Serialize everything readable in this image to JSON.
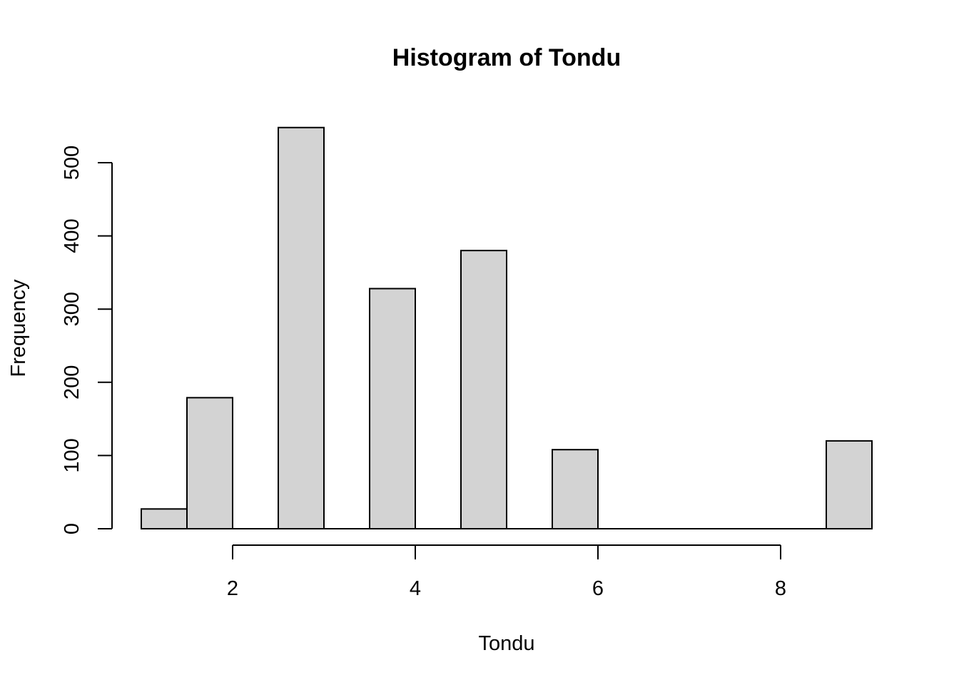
{
  "chart_data": {
    "type": "bar",
    "title": "Histogram of Tondu",
    "xlabel": "Tondu",
    "ylabel": "Frequency",
    "bar_color": "#d3d3d3",
    "bins": [
      {
        "x0": 1.0,
        "x1": 1.5,
        "count": 27
      },
      {
        "x0": 1.5,
        "x1": 2.0,
        "count": 179
      },
      {
        "x0": 2.0,
        "x1": 2.5,
        "count": 0
      },
      {
        "x0": 2.5,
        "x1": 3.0,
        "count": 548
      },
      {
        "x0": 3.0,
        "x1": 3.5,
        "count": 0
      },
      {
        "x0": 3.5,
        "x1": 4.0,
        "count": 328
      },
      {
        "x0": 4.0,
        "x1": 4.5,
        "count": 0
      },
      {
        "x0": 4.5,
        "x1": 5.0,
        "count": 380
      },
      {
        "x0": 5.0,
        "x1": 5.5,
        "count": 0
      },
      {
        "x0": 5.5,
        "x1": 6.0,
        "count": 108
      },
      {
        "x0": 6.0,
        "x1": 6.5,
        "count": 0
      },
      {
        "x0": 6.5,
        "x1": 7.0,
        "count": 0
      },
      {
        "x0": 7.0,
        "x1": 7.5,
        "count": 0
      },
      {
        "x0": 7.5,
        "x1": 8.0,
        "count": 0
      },
      {
        "x0": 8.0,
        "x1": 8.5,
        "count": 0
      },
      {
        "x0": 8.5,
        "x1": 9.0,
        "count": 120
      }
    ],
    "xticks": [
      2,
      4,
      6,
      8
    ],
    "yticks": [
      0,
      100,
      200,
      300,
      400,
      500
    ],
    "xlim": [
      1,
      9
    ],
    "ylim": [
      0,
      548
    ],
    "grid": false
  }
}
